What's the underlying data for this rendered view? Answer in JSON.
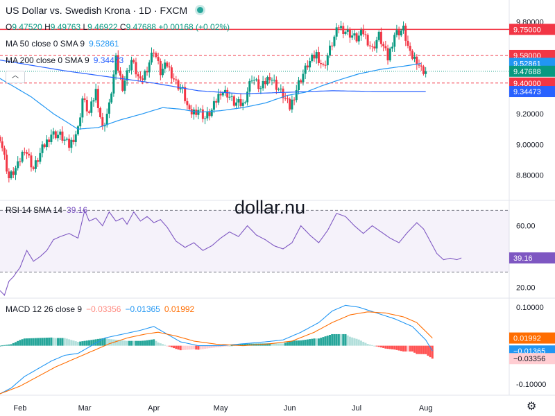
{
  "header": {
    "title": "US Dollar vs. Swedish Krona · 1D · FXCM",
    "ohlc": {
      "o_label": "O",
      "o": "9.47520",
      "h_label": "H",
      "h": "9.49763",
      "l_label": "L",
      "l": "9.46922",
      "c_label": "C",
      "c": "9.47688",
      "change": "+0.00168 (+0.02%)"
    }
  },
  "indicators": {
    "ma50": {
      "label": "MA 50 close 0 SMA 9",
      "value": "9.52861"
    },
    "ma200": {
      "label": "MA 200 close 0 SMA 9",
      "value": "9.34473"
    },
    "rsi": {
      "label": "RSI 14 SMA 14",
      "value": "39.16"
    },
    "macd": {
      "label": "MACD 12 26 close 9",
      "hist": "−0.03356",
      "macd": "−0.01365",
      "signal": "0.01992"
    }
  },
  "watermark": "dollar.nu",
  "colors": {
    "up": "#089981",
    "down": "#f23645",
    "ma50": "#2196f3",
    "ma200": "#2962ff",
    "rsi": "#7e57c2",
    "macd": "#2196f3",
    "signal": "#ff6d00",
    "hist_up": "#26a69a",
    "hist_up_light": "#b2dfdb",
    "hist_down": "#ff5252",
    "hist_down_light": "#ffcdd2"
  },
  "icons": {
    "collapse": "chevron-up-icon",
    "settings": "gear-icon"
  },
  "chart_data": {
    "type": "candlestick",
    "x_axis": {
      "ticks": [
        {
          "label": "Feb",
          "day": 0
        },
        {
          "label": "Mar",
          "day": 29
        },
        {
          "label": "Apr",
          "day": 60
        },
        {
          "label": "May",
          "day": 90
        },
        {
          "label": "Jun",
          "day": 121
        },
        {
          "label": "Jul",
          "day": 151
        },
        {
          "label": "Aug",
          "day": 182
        }
      ],
      "range_days": [
        -9,
        240
      ]
    },
    "price_axis": {
      "range": [
        8.64,
        9.86
      ],
      "ticks": [
        "9.80000",
        "9.20000",
        "9.00000",
        "8.80000"
      ],
      "tick_values": [
        9.8,
        9.2,
        9.0,
        8.8
      ]
    },
    "levels": [
      {
        "value": 9.75,
        "label": "9.75000",
        "style": "solid",
        "color": "#f23645"
      },
      {
        "value": 9.58,
        "label": "9.58000",
        "style": "dashed",
        "color": "#f23645"
      },
      {
        "value": 9.4,
        "label": "9.40000",
        "style": "dashed",
        "color": "#f23645"
      }
    ],
    "last_price": {
      "value": 9.47688,
      "label": "9.47688"
    },
    "close_anchors": [
      [
        -9,
        9.05
      ],
      [
        -5,
        8.78
      ],
      [
        -1,
        8.86
      ],
      [
        2,
        8.98
      ],
      [
        6,
        8.84
      ],
      [
        10,
        8.97
      ],
      [
        14,
        9.07
      ],
      [
        18,
        9.06
      ],
      [
        22,
        8.99
      ],
      [
        26,
        9.1
      ],
      [
        28,
        9.3
      ],
      [
        31,
        9.2
      ],
      [
        34,
        9.35
      ],
      [
        37,
        9.1
      ],
      [
        40,
        9.25
      ],
      [
        43,
        9.55
      ],
      [
        46,
        9.38
      ],
      [
        50,
        9.55
      ],
      [
        54,
        9.4
      ],
      [
        57,
        9.5
      ],
      [
        60,
        9.62
      ],
      [
        63,
        9.47
      ],
      [
        66,
        9.52
      ],
      [
        70,
        9.4
      ],
      [
        73,
        9.35
      ],
      [
        76,
        9.2
      ],
      [
        80,
        9.23
      ],
      [
        83,
        9.17
      ],
      [
        86,
        9.22
      ],
      [
        90,
        9.35
      ],
      [
        93,
        9.33
      ],
      [
        96,
        9.27
      ],
      [
        100,
        9.26
      ],
      [
        104,
        9.44
      ],
      [
        108,
        9.36
      ],
      [
        112,
        9.45
      ],
      [
        115,
        9.38
      ],
      [
        118,
        9.32
      ],
      [
        121,
        9.24
      ],
      [
        125,
        9.4
      ],
      [
        129,
        9.52
      ],
      [
        133,
        9.59
      ],
      [
        136,
        9.5
      ],
      [
        140,
        9.66
      ],
      [
        143,
        9.77
      ],
      [
        147,
        9.73
      ],
      [
        151,
        9.69
      ],
      [
        154,
        9.73
      ],
      [
        158,
        9.62
      ],
      [
        161,
        9.71
      ],
      [
        165,
        9.56
      ],
      [
        168,
        9.72
      ],
      [
        172,
        9.75
      ],
      [
        175,
        9.58
      ],
      [
        178,
        9.55
      ],
      [
        180,
        9.49
      ],
      [
        182,
        9.476
      ]
    ],
    "ma50_anchors": [
      [
        -9,
        9.43
      ],
      [
        5,
        9.31
      ],
      [
        15,
        9.2
      ],
      [
        26,
        9.1
      ],
      [
        35,
        9.11
      ],
      [
        45,
        9.16
      ],
      [
        55,
        9.2
      ],
      [
        64,
        9.24
      ],
      [
        72,
        9.23
      ],
      [
        80,
        9.21
      ],
      [
        90,
        9.22
      ],
      [
        100,
        9.24
      ],
      [
        110,
        9.27
      ],
      [
        120,
        9.32
      ],
      [
        128,
        9.34
      ],
      [
        135,
        9.38
      ],
      [
        143,
        9.42
      ],
      [
        152,
        9.46
      ],
      [
        162,
        9.49
      ],
      [
        172,
        9.51
      ],
      [
        180,
        9.528
      ]
    ],
    "ma200_anchors": [
      [
        -9,
        9.55
      ],
      [
        20,
        9.48
      ],
      [
        40,
        9.44
      ],
      [
        60,
        9.4
      ],
      [
        80,
        9.35
      ],
      [
        100,
        9.33
      ],
      [
        120,
        9.34
      ],
      [
        140,
        9.35
      ],
      [
        160,
        9.345
      ],
      [
        182,
        9.3447
      ]
    ],
    "rsi": {
      "axis_ticks": [
        "60.00",
        "20.00"
      ],
      "tick_values": [
        60,
        20
      ],
      "range": [
        14,
        76
      ],
      "bands": [
        70,
        30
      ],
      "last_value": 39.16,
      "anchors": [
        [
          -9,
          18
        ],
        [
          -7,
          15
        ],
        [
          -5,
          24
        ],
        [
          -3,
          27
        ],
        [
          0,
          33
        ],
        [
          3,
          44
        ],
        [
          6,
          37
        ],
        [
          9,
          40
        ],
        [
          12,
          44
        ],
        [
          15,
          51
        ],
        [
          18,
          53
        ],
        [
          22,
          55
        ],
        [
          26,
          52
        ],
        [
          29,
          70
        ],
        [
          31,
          63
        ],
        [
          34,
          65
        ],
        [
          37,
          60
        ],
        [
          40,
          69
        ],
        [
          43,
          63
        ],
        [
          46,
          65
        ],
        [
          48,
          61
        ],
        [
          51,
          69
        ],
        [
          54,
          63
        ],
        [
          57,
          66
        ],
        [
          60,
          62
        ],
        [
          63,
          64
        ],
        [
          66,
          59
        ],
        [
          70,
          50
        ],
        [
          74,
          46
        ],
        [
          78,
          49
        ],
        [
          82,
          44
        ],
        [
          86,
          47
        ],
        [
          90,
          52
        ],
        [
          94,
          56
        ],
        [
          98,
          53
        ],
        [
          102,
          60
        ],
        [
          106,
          54
        ],
        [
          110,
          51
        ],
        [
          114,
          47
        ],
        [
          118,
          45
        ],
        [
          122,
          49
        ],
        [
          126,
          60
        ],
        [
          130,
          54
        ],
        [
          134,
          49
        ],
        [
          138,
          57
        ],
        [
          142,
          68
        ],
        [
          146,
          66
        ],
        [
          150,
          60
        ],
        [
          154,
          55
        ],
        [
          158,
          60
        ],
        [
          162,
          56
        ],
        [
          166,
          52
        ],
        [
          170,
          49
        ],
        [
          174,
          56
        ],
        [
          178,
          62
        ],
        [
          181,
          58
        ],
        [
          184,
          50
        ],
        [
          187,
          42
        ],
        [
          190,
          38
        ],
        [
          193,
          39
        ],
        [
          196,
          38
        ],
        [
          198,
          39.16
        ]
      ]
    },
    "macd": {
      "axis_ticks": [
        "0.10000",
        "-0.10000"
      ],
      "tick_values": [
        0.1,
        -0.1
      ],
      "range": [
        -0.125,
        0.12
      ],
      "macd_anchors": [
        [
          -9,
          -0.125
        ],
        [
          -4,
          -0.11
        ],
        [
          2,
          -0.08
        ],
        [
          8,
          -0.06
        ],
        [
          14,
          -0.04
        ],
        [
          20,
          -0.025
        ],
        [
          26,
          -0.02
        ],
        [
          32,
          0.0
        ],
        [
          38,
          0.02
        ],
        [
          46,
          0.03
        ],
        [
          54,
          0.04
        ],
        [
          60,
          0.05
        ],
        [
          66,
          0.03
        ],
        [
          72,
          0.01
        ],
        [
          80,
          0.0
        ],
        [
          90,
          0.0
        ],
        [
          100,
          0.005
        ],
        [
          110,
          0.01
        ],
        [
          118,
          0.015
        ],
        [
          126,
          0.035
        ],
        [
          134,
          0.06
        ],
        [
          140,
          0.09
        ],
        [
          146,
          0.105
        ],
        [
          152,
          0.1
        ],
        [
          160,
          0.085
        ],
        [
          168,
          0.07
        ],
        [
          176,
          0.05
        ],
        [
          182,
          0.015
        ],
        [
          185,
          -0.0137
        ]
      ],
      "signal_anchors": [
        [
          -9,
          -0.125
        ],
        [
          0,
          -0.105
        ],
        [
          8,
          -0.08
        ],
        [
          16,
          -0.055
        ],
        [
          24,
          -0.035
        ],
        [
          32,
          -0.015
        ],
        [
          40,
          0.005
        ],
        [
          48,
          0.02
        ],
        [
          56,
          0.03
        ],
        [
          62,
          0.035
        ],
        [
          70,
          0.025
        ],
        [
          78,
          0.012
        ],
        [
          88,
          0.004
        ],
        [
          100,
          0.0
        ],
        [
          112,
          0.005
        ],
        [
          122,
          0.012
        ],
        [
          132,
          0.035
        ],
        [
          140,
          0.06
        ],
        [
          148,
          0.08
        ],
        [
          156,
          0.088
        ],
        [
          164,
          0.085
        ],
        [
          172,
          0.075
        ],
        [
          178,
          0.06
        ],
        [
          185,
          0.0199
        ]
      ],
      "hist_last": -0.03356
    }
  }
}
